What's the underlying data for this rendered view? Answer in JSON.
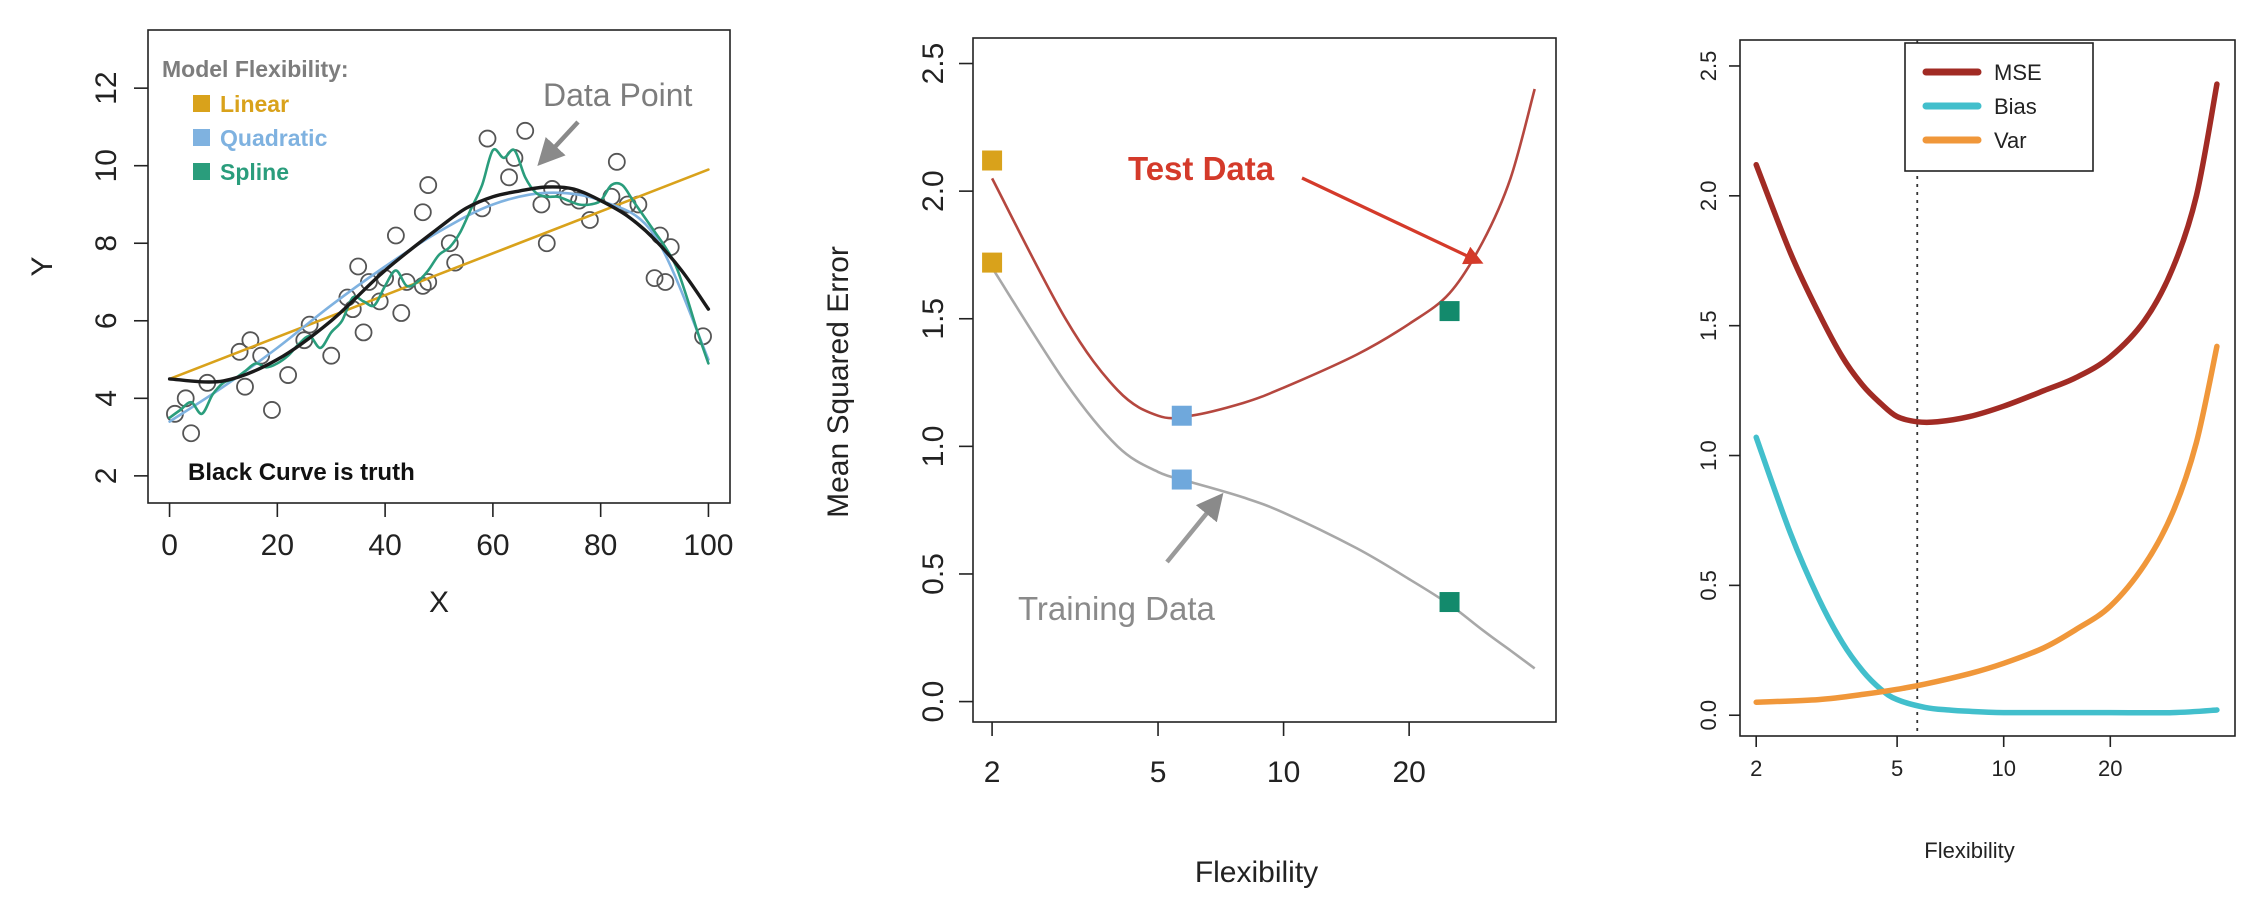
{
  "chart_data": [
    {
      "type": "scatter",
      "xlabel": "X",
      "ylabel": "Y",
      "xlim": [
        -4,
        104
      ],
      "ylim": [
        1.3,
        13.5
      ],
      "xticks": [
        "0",
        "20",
        "40",
        "60",
        "80",
        "100"
      ],
      "yticks": [
        "2",
        "4",
        "6",
        "8",
        "10",
        "12"
      ],
      "legend": {
        "title": "Model Flexibility:",
        "placement": "top-left",
        "entries": [
          {
            "label": "Linear",
            "color": "#d9a21b"
          },
          {
            "label": "Quadratic",
            "color": "#7fb2e0"
          },
          {
            "label": "Spline",
            "color": "#2a9d7c"
          }
        ]
      },
      "annotations": {
        "data_point": "Data Point",
        "truth": "Black Curve is truth"
      },
      "points": [
        [
          1,
          3.6
        ],
        [
          3,
          4.0
        ],
        [
          4,
          3.1
        ],
        [
          7,
          4.4
        ],
        [
          13,
          5.2
        ],
        [
          14,
          4.3
        ],
        [
          15,
          5.5
        ],
        [
          17,
          5.1
        ],
        [
          19,
          3.7
        ],
        [
          22,
          4.6
        ],
        [
          25,
          5.5
        ],
        [
          26,
          5.9
        ],
        [
          30,
          5.1
        ],
        [
          33,
          6.6
        ],
        [
          34,
          6.3
        ],
        [
          35,
          7.4
        ],
        [
          36,
          5.7
        ],
        [
          37,
          7.0
        ],
        [
          39,
          6.5
        ],
        [
          40,
          7.1
        ],
        [
          42,
          8.2
        ],
        [
          43,
          6.2
        ],
        [
          44,
          7.0
        ],
        [
          47,
          6.9
        ],
        [
          47,
          8.8
        ],
        [
          48,
          7.0
        ],
        [
          48,
          9.5
        ],
        [
          52,
          8.0
        ],
        [
          53,
          7.5
        ],
        [
          58,
          8.9
        ],
        [
          59,
          10.7
        ],
        [
          63,
          9.7
        ],
        [
          64,
          10.2
        ],
        [
          66,
          10.9
        ],
        [
          69,
          9.0
        ],
        [
          70,
          8.0
        ],
        [
          71,
          9.4
        ],
        [
          74,
          9.2
        ],
        [
          76,
          9.1
        ],
        [
          78,
          8.6
        ],
        [
          82,
          9.2
        ],
        [
          83,
          10.1
        ],
        [
          85,
          9.0
        ],
        [
          87,
          9.0
        ],
        [
          90,
          7.1
        ],
        [
          91,
          8.2
        ],
        [
          92,
          7.0
        ],
        [
          93,
          7.9
        ],
        [
          99,
          5.6
        ]
      ],
      "series": [
        {
          "name": "Linear",
          "color": "#d9a21b",
          "x": [
            0,
            100
          ],
          "y": [
            4.5,
            9.9
          ]
        },
        {
          "name": "Quadratic",
          "color": "#7fb2e0",
          "x": [
            0,
            10,
            20,
            30,
            40,
            50,
            60,
            70,
            80,
            90,
            100
          ],
          "y": [
            3.4,
            4.3,
            5.3,
            6.4,
            7.4,
            8.3,
            9.0,
            9.3,
            9.1,
            8.2,
            5.0
          ]
        },
        {
          "name": "Spline",
          "color": "#2a9d7c",
          "x": [
            0,
            2,
            4,
            6,
            8,
            10,
            12,
            14,
            16,
            18,
            20,
            22,
            24,
            26,
            28,
            30,
            32,
            34,
            36,
            38,
            40,
            42,
            44,
            46,
            48,
            50,
            52,
            54,
            56,
            58,
            60,
            62,
            64,
            66,
            68,
            70,
            72,
            74,
            76,
            78,
            80,
            82,
            84,
            86,
            88,
            90,
            92,
            94,
            96,
            98,
            100
          ],
          "y": [
            3.5,
            3.7,
            3.9,
            3.6,
            4.1,
            4.4,
            4.5,
            4.7,
            4.9,
            4.8,
            4.9,
            5.1,
            5.4,
            5.6,
            5.3,
            5.7,
            6.0,
            6.6,
            6.5,
            6.4,
            6.9,
            7.3,
            6.9,
            7.0,
            7.3,
            7.7,
            7.9,
            8.3,
            8.9,
            9.5,
            10.4,
            10.2,
            10.4,
            9.7,
            9.3,
            9.2,
            9.2,
            9.1,
            9.0,
            9.0,
            9.1,
            9.5,
            9.5,
            9.1,
            8.7,
            8.3,
            7.9,
            7.4,
            6.6,
            5.7,
            4.9
          ]
        },
        {
          "name": "Truth",
          "color": "#1a1a1a",
          "x": [
            0,
            10,
            20,
            30,
            40,
            50,
            55,
            60,
            65,
            70,
            75,
            80,
            85,
            90,
            95,
            100
          ],
          "y": [
            4.5,
            4.45,
            5.0,
            6.0,
            7.3,
            8.4,
            8.9,
            9.2,
            9.35,
            9.45,
            9.4,
            9.1,
            8.7,
            8.1,
            7.3,
            6.3
          ]
        }
      ]
    },
    {
      "type": "line",
      "xlabel": "Flexibility",
      "ylabel": "Mean Squared Error",
      "xscale": "log",
      "xlim": [
        1.8,
        45
      ],
      "ylim": [
        -0.08,
        2.6
      ],
      "xticks": [
        2,
        5,
        10,
        20
      ],
      "yticks": [
        "0.0",
        "0.5",
        "1.0",
        "1.5",
        "2.0",
        "2.5"
      ],
      "annotations": {
        "test_label": "Test Data",
        "train_label": "Training Data"
      },
      "series": [
        {
          "name": "Test Data",
          "color": "#b5473f",
          "x": [
            2,
            3,
            4,
            5,
            6,
            8,
            10,
            15,
            20,
            25,
            30,
            35,
            40
          ],
          "y": [
            2.05,
            1.5,
            1.22,
            1.12,
            1.12,
            1.17,
            1.23,
            1.36,
            1.48,
            1.6,
            1.8,
            2.05,
            2.4
          ]
        },
        {
          "name": "Training Data",
          "color": "#a8a8a8",
          "x": [
            2,
            3,
            4,
            5,
            6,
            8,
            10,
            15,
            20,
            25,
            30,
            35,
            40
          ],
          "y": [
            1.7,
            1.25,
            1.0,
            0.9,
            0.86,
            0.8,
            0.74,
            0.6,
            0.48,
            0.38,
            0.28,
            0.2,
            0.13
          ]
        }
      ],
      "markers": [
        {
          "x": 2,
          "y": 2.12,
          "color": "#d9a21b"
        },
        {
          "x": 2,
          "y": 1.72,
          "color": "#d9a21b"
        },
        {
          "x": 5.7,
          "y": 1.12,
          "color": "#6fa8dc"
        },
        {
          "x": 5.7,
          "y": 0.87,
          "color": "#6fa8dc"
        },
        {
          "x": 25,
          "y": 1.53,
          "color": "#138a6c"
        },
        {
          "x": 25,
          "y": 0.39,
          "color": "#138a6c"
        }
      ]
    },
    {
      "type": "line",
      "xlabel": "Flexibility",
      "ylabel": "",
      "xscale": "log",
      "xlim": [
        1.8,
        45
      ],
      "ylim": [
        -0.08,
        2.6
      ],
      "xticks": [
        2,
        5,
        10,
        20
      ],
      "yticks": [
        "0.0",
        "0.5",
        "1.0",
        "1.5",
        "2.0",
        "2.5"
      ],
      "vline": 5.7,
      "legend": {
        "placement": "top-right",
        "entries": [
          {
            "label": "MSE",
            "color": "#a12b24"
          },
          {
            "label": "Bias",
            "color": "#42bfcc"
          },
          {
            "label": "Var",
            "color": "#f0973a"
          }
        ]
      },
      "series": [
        {
          "name": "MSE",
          "color": "#a12b24",
          "x": [
            2,
            2.5,
            3,
            3.5,
            4,
            4.5,
            5,
            5.7,
            6.5,
            8,
            10,
            13,
            16,
            20,
            25,
            30,
            35,
            40
          ],
          "y": [
            2.12,
            1.78,
            1.55,
            1.38,
            1.27,
            1.2,
            1.15,
            1.13,
            1.13,
            1.15,
            1.19,
            1.25,
            1.3,
            1.38,
            1.52,
            1.72,
            2.0,
            2.43
          ]
        },
        {
          "name": "Bias",
          "color": "#42bfcc",
          "x": [
            2,
            2.5,
            3,
            3.5,
            4,
            4.5,
            5,
            6,
            7,
            8,
            10,
            15,
            20,
            30,
            40
          ],
          "y": [
            1.07,
            0.7,
            0.45,
            0.28,
            0.17,
            0.1,
            0.06,
            0.03,
            0.02,
            0.015,
            0.01,
            0.01,
            0.01,
            0.01,
            0.02
          ]
        },
        {
          "name": "Var",
          "color": "#f0973a",
          "x": [
            2,
            3,
            4,
            5,
            6,
            8,
            10,
            13,
            16,
            20,
            25,
            30,
            35,
            40
          ],
          "y": [
            0.05,
            0.06,
            0.08,
            0.1,
            0.12,
            0.16,
            0.2,
            0.26,
            0.33,
            0.42,
            0.58,
            0.78,
            1.05,
            1.42
          ]
        }
      ]
    }
  ]
}
